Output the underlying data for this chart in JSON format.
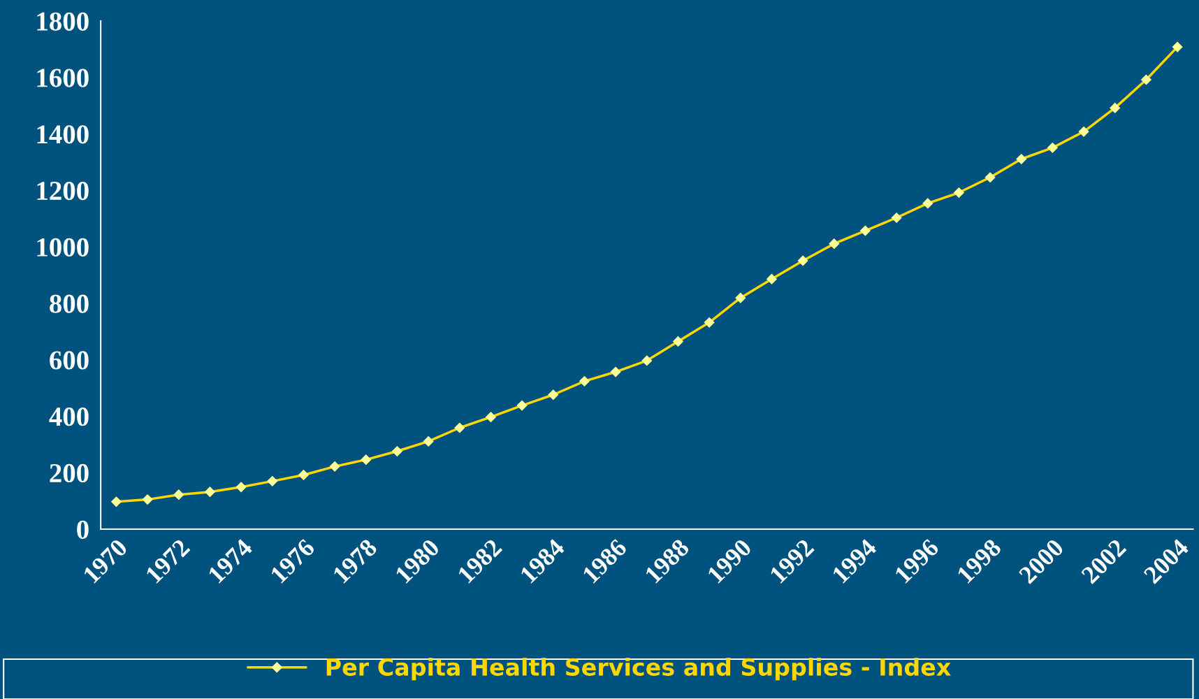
{
  "chart_data": {
    "type": "line",
    "categories": [
      "1970",
      null,
      "1972",
      null,
      "1974",
      null,
      "1976",
      null,
      "1978",
      null,
      "1980",
      null,
      "1982",
      null,
      "1984",
      null,
      "1986",
      null,
      "1988",
      null,
      "1990",
      null,
      "1992",
      null,
      "1994",
      null,
      "1996",
      null,
      "1998",
      null,
      "2000",
      null,
      "2002",
      null,
      "2004"
    ],
    "series": [
      {
        "name": "Per Capita Health Services and Supplies - Index",
        "color": "#ffd700",
        "values": [
          97,
          105,
          122,
          132,
          149,
          170,
          192,
          222,
          246,
          276,
          311,
          359,
          397,
          438,
          476,
          524,
          557,
          597,
          665,
          732,
          819,
          886,
          951,
          1011,
          1057,
          1103,
          1154,
          1192,
          1246,
          1311,
          1351,
          1408,
          1492,
          1592,
          1708
        ]
      }
    ],
    "ylim": [
      0,
      1800
    ],
    "yticks": [
      0,
      200,
      400,
      600,
      800,
      1000,
      1200,
      1400,
      1600,
      1800
    ],
    "marker": "diamond",
    "line_style": "solid",
    "grid": false,
    "legend": "bottom"
  }
}
